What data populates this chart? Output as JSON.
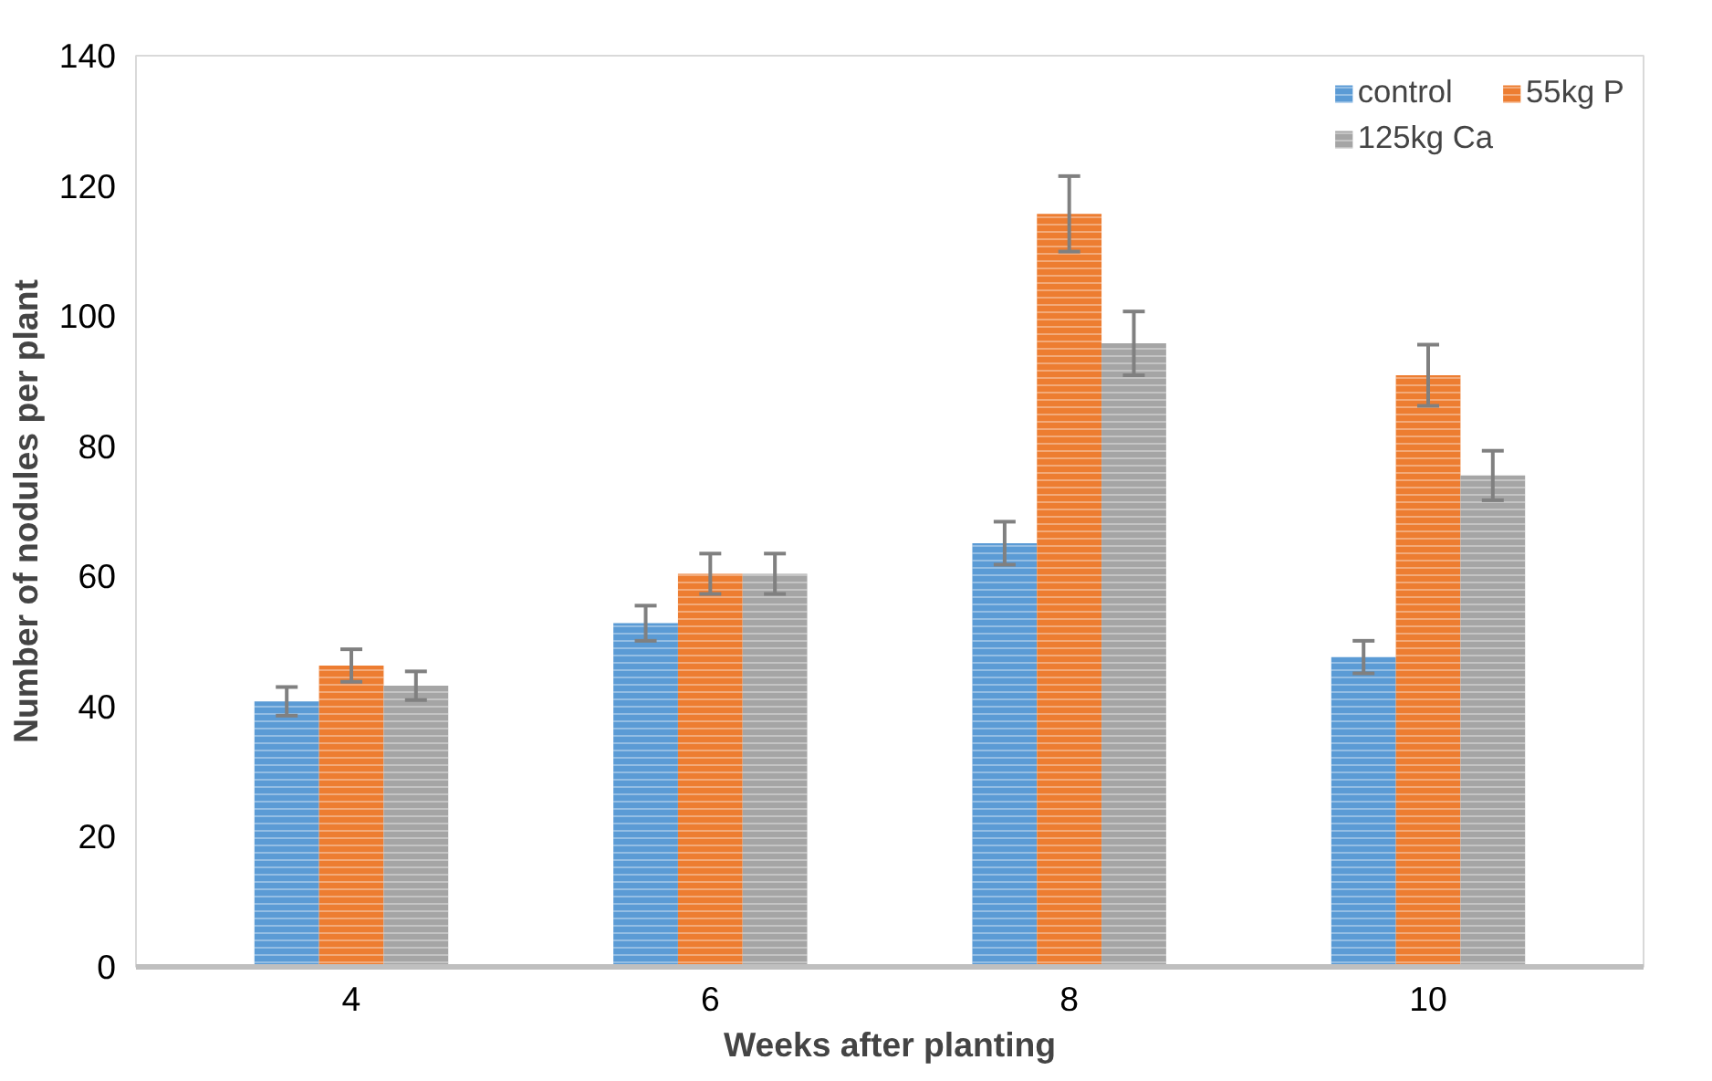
{
  "chart_data": {
    "type": "bar",
    "xlabel": "Weeks after planting",
    "ylabel": "Number of nodules per plant",
    "categories": [
      "4",
      "6",
      "8",
      "10"
    ],
    "series": [
      {
        "name": "control",
        "color": "#5b9bd5",
        "values": [
          40.8,
          52.8,
          65.1,
          47.6
        ],
        "errors": [
          2.2,
          2.7,
          3.3,
          2.5
        ]
      },
      {
        "name": "55kg P",
        "color": "#ed7d31",
        "values": [
          46.3,
          60.4,
          115.7,
          90.9
        ],
        "errors": [
          2.5,
          3.1,
          5.8,
          4.7
        ]
      },
      {
        "name": "125kg Ca",
        "color": "#a5a5a5",
        "values": [
          43.2,
          60.4,
          95.8,
          75.5
        ],
        "errors": [
          2.2,
          3.1,
          4.9,
          3.8
        ]
      }
    ],
    "ylim": [
      0,
      140
    ],
    "yticks": [
      0,
      20,
      40,
      60,
      80,
      100,
      120,
      140
    ],
    "grid": false,
    "legend": "top right"
  }
}
